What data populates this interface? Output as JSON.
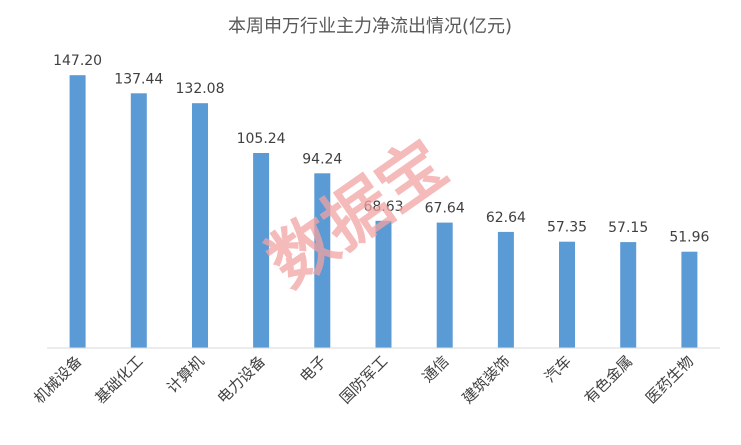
{
  "chart_data": {
    "type": "bar",
    "title": "本周申万行业主力净流出情况(亿元)",
    "categories": [
      "机械设备",
      "基础化工",
      "计算机",
      "电力设备",
      "电子",
      "国防军工",
      "通信",
      "建筑装饰",
      "汽车",
      "有色金属",
      "医药生物"
    ],
    "values": [
      147.2,
      137.44,
      132.08,
      105.24,
      94.24,
      68.63,
      67.64,
      62.64,
      57.35,
      57.15,
      51.96
    ],
    "value_labels": [
      "147.20",
      "137.44",
      "132.08",
      "105.24",
      "94.24",
      "68.63",
      "67.64",
      "62.64",
      "57.35",
      "57.15",
      "51.96"
    ],
    "ylim": [
      0,
      150
    ],
    "grid": false,
    "legend": "none",
    "colors": {
      "bar": "#5b9bd5",
      "axis": "#d9d9d9",
      "watermark": "#f2a3a3"
    },
    "watermark": "数据宝"
  }
}
